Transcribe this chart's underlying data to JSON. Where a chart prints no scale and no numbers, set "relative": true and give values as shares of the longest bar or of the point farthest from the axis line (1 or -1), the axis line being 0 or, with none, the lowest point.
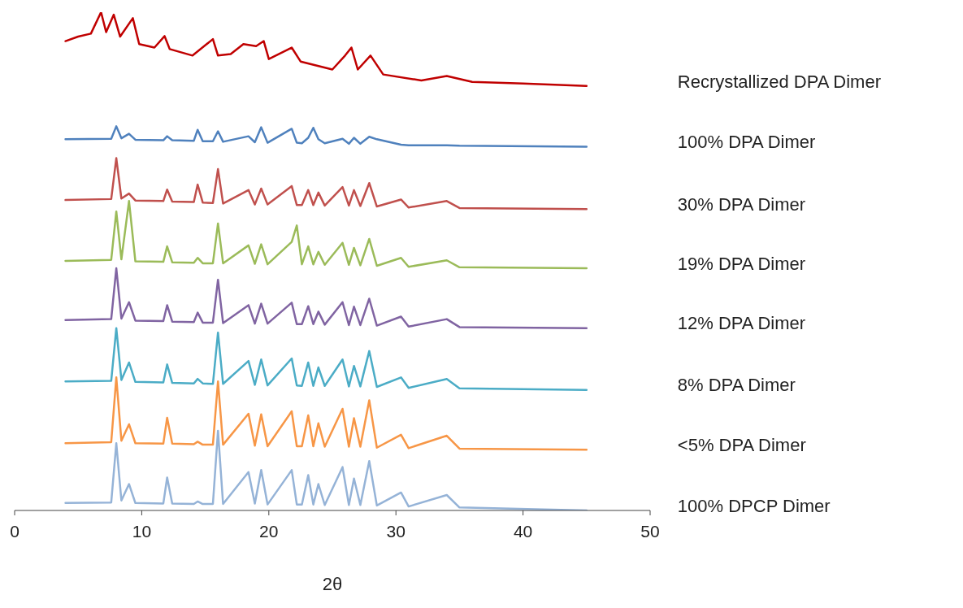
{
  "chart_data": {
    "type": "line",
    "xlabel": "2θ",
    "xlim": [
      0,
      50
    ],
    "xticks": [
      0,
      10,
      20,
      30,
      40,
      50
    ],
    "relative": true,
    "tick_labels": "x",
    "x": [
      4,
      7.6,
      8,
      8.4,
      9,
      9.5,
      11.7,
      12,
      12.4,
      14.1,
      14.4,
      14.8,
      15.6,
      16,
      16.4,
      18.4,
      18.9,
      19.4,
      19.9,
      21.8,
      22.2,
      22.6,
      23.1,
      23.5,
      23.9,
      24.4,
      25.8,
      26.3,
      26.7,
      27.2,
      27.9,
      28.5,
      30.4,
      31,
      34,
      35,
      45
    ],
    "series": [
      {
        "name": "Recrystallized DPA Dimer",
        "color": "#c00000",
        "x": [
          4,
          5,
          6,
          6.8,
          7.2,
          7.8,
          8.3,
          9.3,
          9.8,
          11,
          11.8,
          12.2,
          14,
          15.6,
          16,
          17,
          18,
          19,
          19.6,
          20,
          21.8,
          22.5,
          25,
          26,
          26.5,
          27,
          28,
          29,
          32,
          34,
          36,
          40,
          45
        ],
        "values": [
          0.942,
          0.951,
          0.957,
          1,
          0.96,
          0.995,
          0.951,
          0.988,
          0.936,
          0.929,
          0.952,
          0.926,
          0.913,
          0.946,
          0.913,
          0.916,
          0.936,
          0.932,
          0.942,
          0.906,
          0.929,
          0.901,
          0.885,
          0.913,
          0.929,
          0.885,
          0.913,
          0.875,
          0.863,
          0.872,
          0.86,
          0.857,
          0.852
        ]
      },
      {
        "name": "100% DPA Dimer",
        "color": "#4f81bd",
        "values": [
          0.745,
          0.746,
          0.771,
          0.747,
          0.756,
          0.744,
          0.743,
          0.751,
          0.743,
          0.742,
          0.764,
          0.741,
          0.741,
          0.761,
          0.74,
          0.751,
          0.739,
          0.769,
          0.738,
          0.766,
          0.738,
          0.737,
          0.748,
          0.768,
          0.745,
          0.737,
          0.746,
          0.736,
          0.748,
          0.736,
          0.75,
          0.745,
          0.734,
          0.733,
          0.733,
          0.732,
          0.73
        ]
      },
      {
        "name": "30% DPA Dimer",
        "color": "#c0504d",
        "values": [
          0.623,
          0.625,
          0.707,
          0.626,
          0.636,
          0.622,
          0.621,
          0.644,
          0.62,
          0.619,
          0.654,
          0.618,
          0.617,
          0.685,
          0.616,
          0.643,
          0.614,
          0.646,
          0.614,
          0.651,
          0.613,
          0.613,
          0.643,
          0.613,
          0.638,
          0.612,
          0.649,
          0.612,
          0.643,
          0.611,
          0.657,
          0.61,
          0.624,
          0.608,
          0.621,
          0.607,
          0.605
        ]
      },
      {
        "name": "19% DPA Dimer",
        "color": "#9bbb59",
        "values": [
          0.501,
          0.503,
          0.6,
          0.504,
          0.621,
          0.5,
          0.499,
          0.53,
          0.498,
          0.497,
          0.507,
          0.496,
          0.496,
          0.576,
          0.496,
          0.532,
          0.495,
          0.534,
          0.494,
          0.539,
          0.572,
          0.494,
          0.53,
          0.494,
          0.519,
          0.493,
          0.537,
          0.493,
          0.527,
          0.492,
          0.545,
          0.491,
          0.507,
          0.489,
          0.502,
          0.488,
          0.486
        ]
      },
      {
        "name": "12% DPA Dimer",
        "color": "#8064a2",
        "values": [
          0.382,
          0.384,
          0.486,
          0.385,
          0.418,
          0.381,
          0.38,
          0.412,
          0.379,
          0.378,
          0.397,
          0.377,
          0.377,
          0.463,
          0.376,
          0.412,
          0.375,
          0.415,
          0.375,
          0.417,
          0.374,
          0.374,
          0.41,
          0.374,
          0.399,
          0.373,
          0.418,
          0.372,
          0.409,
          0.372,
          0.425,
          0.371,
          0.389,
          0.369,
          0.384,
          0.368,
          0.366
        ]
      },
      {
        "name": "8% DPA Dimer",
        "color": "#4bacc6",
        "values": [
          0.259,
          0.26,
          0.366,
          0.262,
          0.297,
          0.258,
          0.257,
          0.293,
          0.256,
          0.255,
          0.264,
          0.255,
          0.254,
          0.357,
          0.254,
          0.3,
          0.252,
          0.303,
          0.251,
          0.305,
          0.251,
          0.25,
          0.297,
          0.25,
          0.287,
          0.25,
          0.303,
          0.249,
          0.29,
          0.249,
          0.32,
          0.248,
          0.267,
          0.246,
          0.264,
          0.245,
          0.242
        ]
      },
      {
        "name": "<5% DPA Dimer",
        "color": "#f79646",
        "values": [
          0.135,
          0.137,
          0.267,
          0.14,
          0.173,
          0.135,
          0.134,
          0.186,
          0.134,
          0.133,
          0.138,
          0.132,
          0.132,
          0.259,
          0.132,
          0.194,
          0.13,
          0.193,
          0.129,
          0.199,
          0.129,
          0.129,
          0.191,
          0.129,
          0.175,
          0.128,
          0.204,
          0.128,
          0.185,
          0.128,
          0.221,
          0.126,
          0.152,
          0.125,
          0.15,
          0.124,
          0.122
        ]
      },
      {
        "name": "100% DPCP Dimer",
        "color": "#95b3d7",
        "values": [
          0.015,
          0.016,
          0.135,
          0.02,
          0.053,
          0.015,
          0.014,
          0.066,
          0.014,
          0.013,
          0.018,
          0.013,
          0.013,
          0.16,
          0.013,
          0.077,
          0.014,
          0.081,
          0.012,
          0.081,
          0.012,
          0.012,
          0.071,
          0.012,
          0.053,
          0.011,
          0.087,
          0.011,
          0.064,
          0.011,
          0.099,
          0.01,
          0.036,
          0.008,
          0.031,
          0.006,
          0
        ]
      }
    ]
  }
}
